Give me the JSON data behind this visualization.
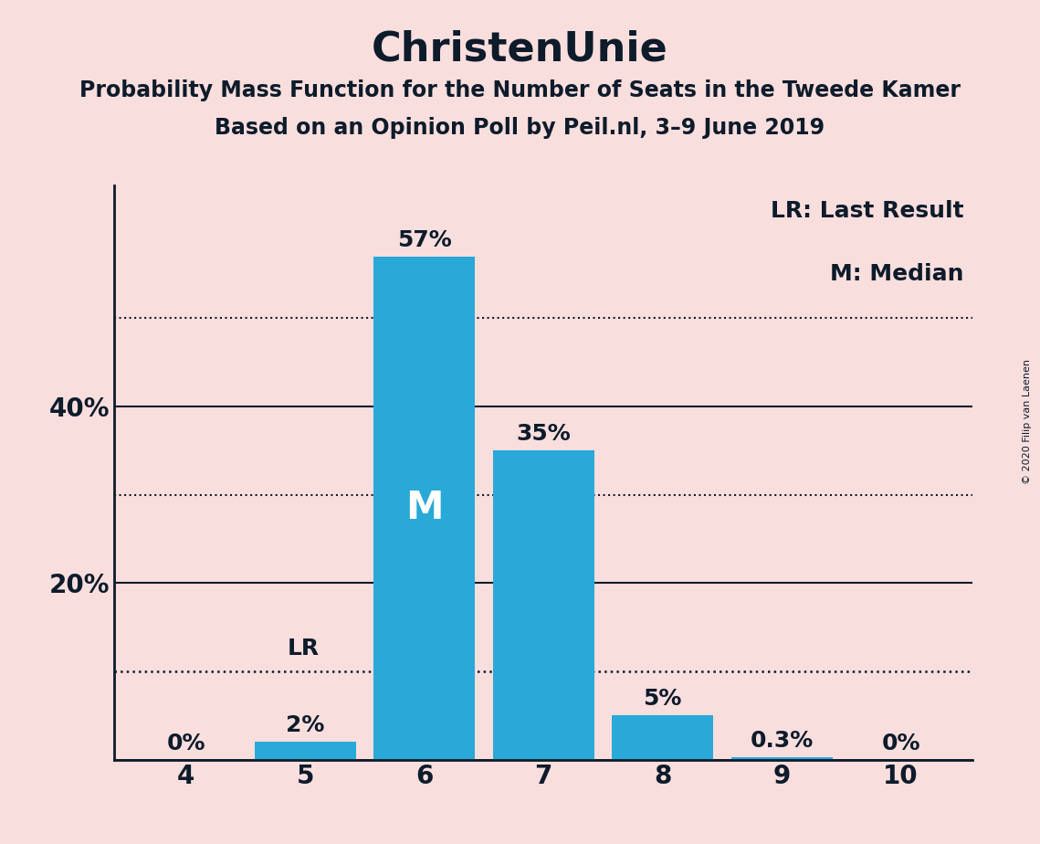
{
  "title": "ChristenUnie",
  "subtitle1": "Probability Mass Function for the Number of Seats in the Tweede Kamer",
  "subtitle2": "Based on an Opinion Poll by Peil.nl, 3–9 June 2019",
  "copyright": "© 2020 Filip van Laenen",
  "legend1": "LR: Last Result",
  "legend2": "M: Median",
  "seats": [
    4,
    5,
    6,
    7,
    8,
    9,
    10
  ],
  "probabilities": [
    0.0,
    0.02,
    0.57,
    0.35,
    0.05,
    0.003,
    0.0
  ],
  "bar_color": "#29a9d8",
  "background_color": "#f9dede",
  "bar_labels": [
    "0%",
    "2%",
    "57%",
    "35%",
    "5%",
    "0.3%",
    "0%"
  ],
  "median_seat": 6,
  "lr_seat": 5,
  "lr_value": 0.1,
  "yticks_solid": [
    0.2,
    0.4
  ],
  "yticks_dotted": [
    0.1,
    0.3,
    0.5
  ],
  "ylim": [
    0,
    0.65
  ],
  "title_fontsize": 32,
  "subtitle_fontsize": 17,
  "label_fontsize": 18,
  "tick_fontsize": 20,
  "axis_color": "#0d1b2a"
}
